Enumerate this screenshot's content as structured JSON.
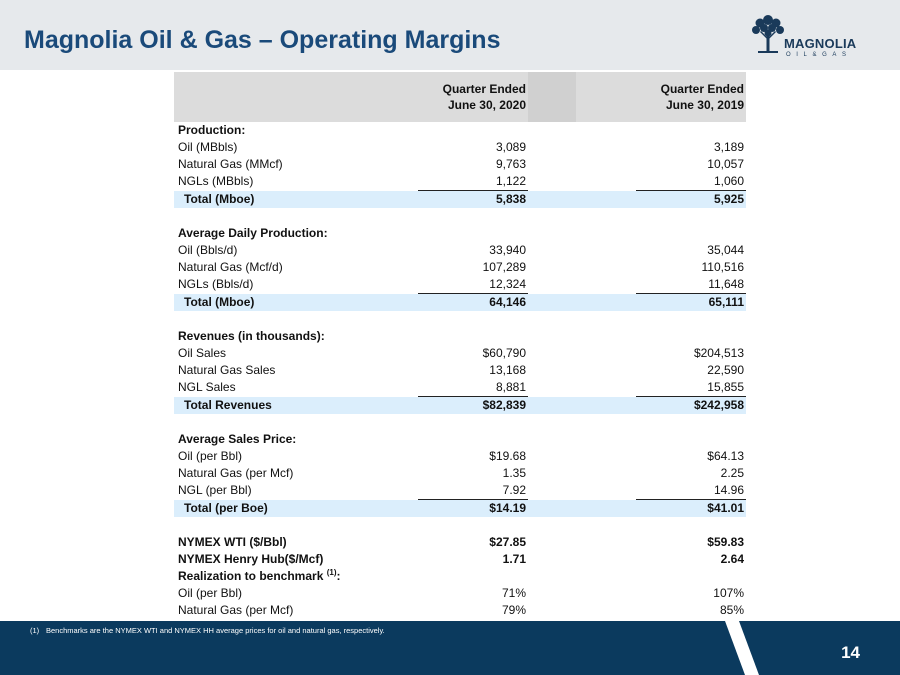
{
  "title": "Magnolia Oil & Gas – Operating Margins",
  "logo": {
    "name": "MAGNOLIA",
    "sub": "OIL&GAS"
  },
  "table": {
    "col1_header_line1": "Quarter Ended",
    "col1_header_line2": "June 30, 2020",
    "col2_header_line1": "Quarter Ended",
    "col2_header_line2": "June 30, 2019",
    "rows": [
      {
        "label": "Production:",
        "v1": "",
        "v2": ""
      },
      {
        "label": "Oil (MBbls)",
        "v1": "3,089",
        "v2": "3,189"
      },
      {
        "label": "Natural Gas (MMcf)",
        "v1": "9,763",
        "v2": "10,057"
      },
      {
        "label": "NGLs (MBbls)",
        "v1": "1,122",
        "v2": "1,060"
      },
      {
        "label": "Total (Mboe)",
        "v1": "5,838",
        "v2": "5,925"
      },
      {
        "label": "",
        "v1": "",
        "v2": ""
      },
      {
        "label": "Average Daily Production:",
        "v1": "",
        "v2": ""
      },
      {
        "label": "Oil (Bbls/d)",
        "v1": "33,940",
        "v2": "35,044"
      },
      {
        "label": "Natural Gas (Mcf/d)",
        "v1": "107,289",
        "v2": "110,516"
      },
      {
        "label": "NGLs (Bbls/d)",
        "v1": "12,324",
        "v2": "11,648"
      },
      {
        "label": "Total (Mboe)",
        "v1": "64,146",
        "v2": "65,111"
      },
      {
        "label": "",
        "v1": "",
        "v2": ""
      },
      {
        "label": "Revenues (in thousands):",
        "v1": "",
        "v2": ""
      },
      {
        "label": "Oil Sales",
        "v1": "$60,790",
        "v2": "$204,513"
      },
      {
        "label": "Natural Gas Sales",
        "v1": "13,168",
        "v2": "22,590"
      },
      {
        "label": "NGL Sales",
        "v1": "8,881",
        "v2": "15,855"
      },
      {
        "label": "Total Revenues",
        "v1": "$82,839",
        "v2": "$242,958"
      },
      {
        "label": "",
        "v1": "",
        "v2": ""
      },
      {
        "label": "Average Sales Price:",
        "v1": "",
        "v2": ""
      },
      {
        "label": "Oil (per Bbl)",
        "v1": "$19.68",
        "v2": "$64.13"
      },
      {
        "label": "Natural Gas (per Mcf)",
        "v1": "1.35",
        "v2": "2.25"
      },
      {
        "label": "NGL (per Bbl)",
        "v1": "7.92",
        "v2": "14.96"
      },
      {
        "label": "Total (per Boe)",
        "v1": "$14.19",
        "v2": "$41.01"
      },
      {
        "label": "",
        "v1": "",
        "v2": ""
      },
      {
        "label": "NYMEX WTI ($/Bbl)",
        "v1": "$27.85",
        "v2": "$59.83"
      },
      {
        "label": "NYMEX Henry Hub($/Mcf)",
        "v1": "1.71",
        "v2": "2.64"
      },
      {
        "label": "Realization to benchmark",
        "sup": "(1)",
        "suffix": ":",
        "v1": "",
        "v2": ""
      },
      {
        "label": "Oil (per Bbl)",
        "v1": "71%",
        "v2": "107%"
      },
      {
        "label": "Natural Gas (per Mcf)",
        "v1": "79%",
        "v2": "85%"
      }
    ]
  },
  "footnote": {
    "marker": "(1)",
    "text": "Benchmarks are the NYMEX WTI and NYMEX HH average prices for oil and natural gas, respectively."
  },
  "page_number": "14",
  "colors": {
    "title": "#1a4a7a",
    "footer": "#0b3a5e",
    "total_row": "#dbeefc",
    "header_bg": "#e6e9ec"
  }
}
